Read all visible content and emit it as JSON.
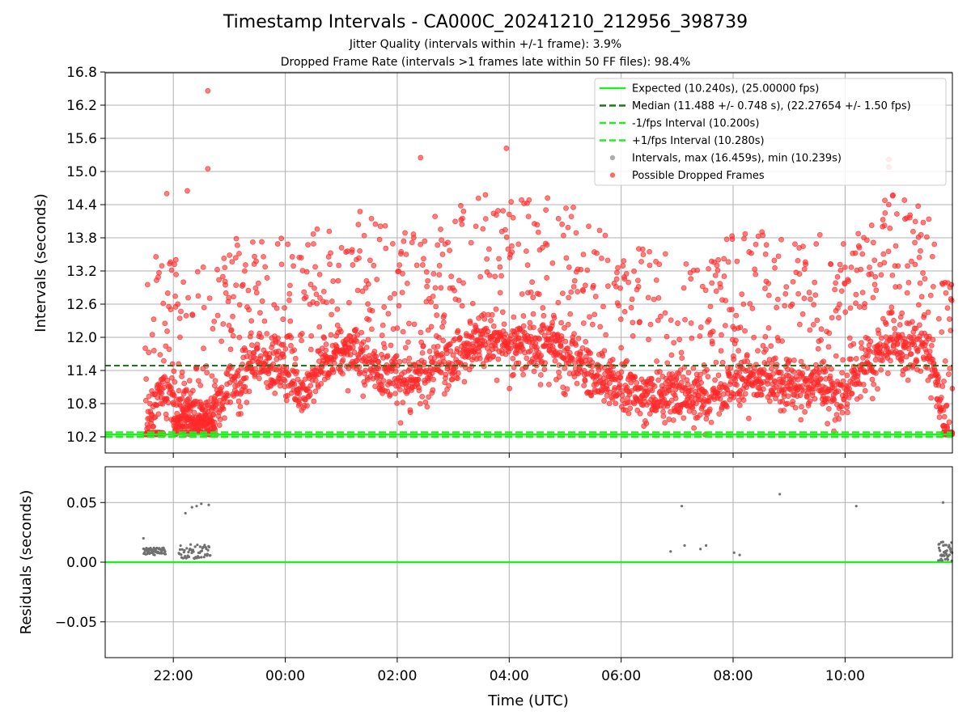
{
  "figure": {
    "title": "Timestamp Intervals - CA000C_20241210_212956_398739",
    "subtitle_jitter": "Jitter Quality (intervals within +/-1 frame): 3.9%",
    "subtitle_dropped": "Dropped Frame Rate (intervals >1 frames late within 50 FF files): 98.4%"
  },
  "chart_data": [
    {
      "type": "scatter",
      "panel": "top",
      "ylabel": "Intervals (seconds)",
      "ylim": [
        10.2,
        16.8
      ],
      "yticks": [
        10.2,
        10.8,
        11.4,
        12.0,
        12.6,
        13.2,
        13.8,
        14.4,
        15.0,
        15.6,
        16.2,
        16.8
      ],
      "ytick_labels": [
        "10.2",
        "10.8",
        "11.4",
        "12.0",
        "12.6",
        "13.2",
        "13.8",
        "14.4",
        "15.0",
        "15.6",
        "16.2",
        "16.8"
      ],
      "xlim": [
        "2024-12-10 20:47",
        "2024-12-11 11:55"
      ],
      "xticks": [
        "22:00",
        "00:00",
        "02:00",
        "04:00",
        "06:00",
        "08:00",
        "10:00"
      ],
      "grid": true,
      "legend_position": "top-right",
      "lines": [
        {
          "name": "Expected (10.240s), (25.00000 fps)",
          "y": 10.24,
          "style": "solid",
          "color": "#22ee22"
        },
        {
          "name": "Median (11.488 +/- 0.748 s), (22.27654 +/- 1.50 fps)",
          "y": 11.488,
          "style": "dashed",
          "color": "#1a7a1a"
        },
        {
          "name": "-1/fps Interval (10.200s)",
          "y": 10.2,
          "style": "dashed",
          "color": "#22ee22"
        },
        {
          "name": "+1/fps Interval (10.280s)",
          "y": 10.28,
          "style": "dashed",
          "color": "#22ee22"
        }
      ],
      "series": [
        {
          "name": "Intervals, max (16.459s), min (10.239s)",
          "color": "#8c8c8c",
          "max": 16.459,
          "min": 10.239
        },
        {
          "name": "Possible Dropped Frames",
          "color": "#ff2a2a",
          "trend": [
            {
              "t": "21:30",
              "y": 10.24
            },
            {
              "t": "21:50",
              "y": 11.2
            },
            {
              "t": "22:10",
              "y": 10.7
            },
            {
              "t": "22:40",
              "y": 10.6
            },
            {
              "t": "23:00",
              "y": 11.1
            },
            {
              "t": "23:30",
              "y": 11.6
            },
            {
              "t": "00:00",
              "y": 11.4
            },
            {
              "t": "00:20",
              "y": 11.0
            },
            {
              "t": "00:40",
              "y": 11.5
            },
            {
              "t": "01:10",
              "y": 11.8
            },
            {
              "t": "01:40",
              "y": 11.4
            },
            {
              "t": "02:10",
              "y": 11.2
            },
            {
              "t": "02:40",
              "y": 11.5
            },
            {
              "t": "03:10",
              "y": 11.8
            },
            {
              "t": "03:40",
              "y": 12.0
            },
            {
              "t": "04:10",
              "y": 11.8
            },
            {
              "t": "04:40",
              "y": 11.9
            },
            {
              "t": "05:10",
              "y": 11.7
            },
            {
              "t": "05:30",
              "y": 11.3
            },
            {
              "t": "06:00",
              "y": 11.1
            },
            {
              "t": "06:30",
              "y": 10.9
            },
            {
              "t": "07:00",
              "y": 11.0
            },
            {
              "t": "07:30",
              "y": 10.9
            },
            {
              "t": "08:00",
              "y": 11.2
            },
            {
              "t": "08:30",
              "y": 11.3
            },
            {
              "t": "09:00",
              "y": 11.1
            },
            {
              "t": "09:30",
              "y": 11.2
            },
            {
              "t": "10:00",
              "y": 11.0
            },
            {
              "t": "10:20",
              "y": 11.5
            },
            {
              "t": "10:50",
              "y": 11.9
            },
            {
              "t": "11:30",
              "y": 11.8
            },
            {
              "t": "11:50",
              "y": 10.3
            }
          ],
          "highlights": [
            {
              "t": "22:37",
              "y": 16.459
            },
            {
              "t": "22:37",
              "y": 15.05
            },
            {
              "t": "03:57",
              "y": 15.42
            },
            {
              "t": "02:25",
              "y": 15.25
            },
            {
              "t": "10:47",
              "y": 15.22
            },
            {
              "t": "10:47",
              "y": 15.08
            },
            {
              "t": "22:15",
              "y": 14.65
            },
            {
              "t": "21:53",
              "y": 14.6
            }
          ]
        }
      ]
    },
    {
      "type": "scatter",
      "panel": "bottom",
      "xlabel": "Time (UTC)",
      "ylabel": "Residuals (seconds)",
      "ylim": [
        -0.08,
        0.08
      ],
      "yticks": [
        0.05,
        0.0,
        -0.05
      ],
      "ytick_labels": [
        "0.05",
        "0.00",
        "−0.05"
      ],
      "xticks": [
        "22:00",
        "00:00",
        "02:00",
        "04:00",
        "06:00",
        "08:00",
        "10:00"
      ],
      "grid": true,
      "zero_line": {
        "y": 0.0,
        "color": "#22ee22"
      },
      "series": [
        {
          "name": "Residuals",
          "color": "#707070",
          "points": [
            {
              "t": "22:30",
              "y": 0.049
            },
            {
              "t": "22:25",
              "y": 0.047
            },
            {
              "t": "22:20",
              "y": 0.046
            },
            {
              "t": "22:13",
              "y": 0.041
            },
            {
              "t": "22:38",
              "y": 0.048
            },
            {
              "t": "21:28",
              "y": 0.02
            },
            {
              "t": "07:05",
              "y": 0.047
            },
            {
              "t": "08:50",
              "y": 0.057
            },
            {
              "t": "10:12",
              "y": 0.047
            },
            {
              "t": "11:45",
              "y": 0.05
            },
            {
              "t": "06:53",
              "y": 0.009
            },
            {
              "t": "07:08",
              "y": 0.014
            },
            {
              "t": "07:25",
              "y": 0.011
            },
            {
              "t": "07:31",
              "y": 0.014
            },
            {
              "t": "08:01",
              "y": 0.008
            },
            {
              "t": "08:07",
              "y": 0.006
            }
          ]
        }
      ]
    }
  ]
}
